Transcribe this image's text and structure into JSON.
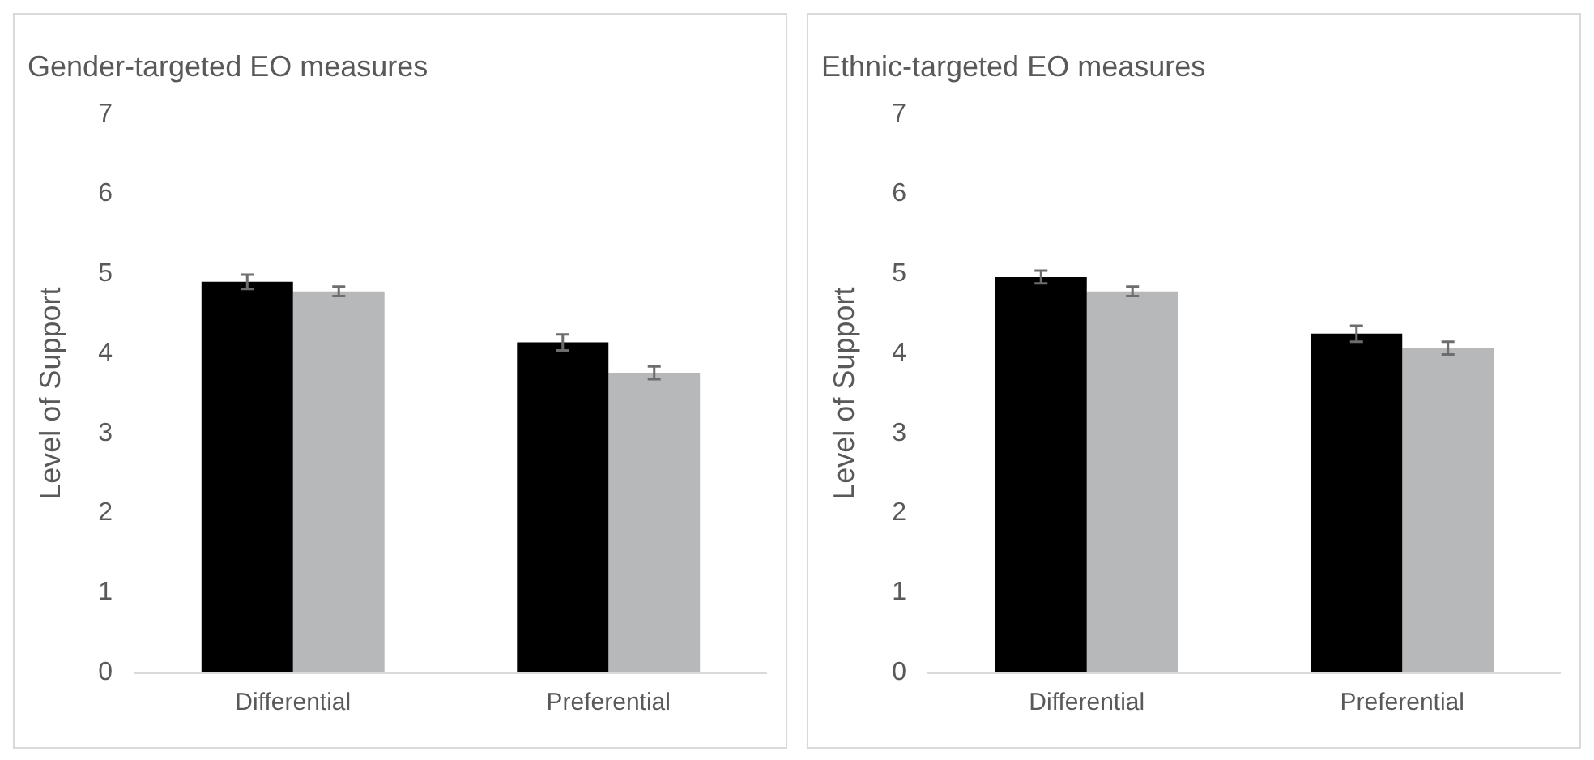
{
  "chart_data": [
    {
      "type": "bar",
      "title": "Gender-targeted EO measures",
      "ylabel": "Level of Support",
      "categories": [
        "Differential",
        "Preferential"
      ],
      "ylim": [
        0,
        7
      ],
      "yticks": [
        0,
        1,
        2,
        3,
        4,
        5,
        6,
        7
      ],
      "series": [
        {
          "color": "#000000",
          "values": [
            4.9,
            4.14
          ],
          "errors": [
            0.09,
            0.1
          ]
        },
        {
          "color": "#b7b8ba",
          "values": [
            4.78,
            3.76
          ],
          "errors": [
            0.06,
            0.08
          ]
        }
      ]
    },
    {
      "type": "bar",
      "title": "Ethnic-targeted EO measures",
      "ylabel": "Level of Support",
      "categories": [
        "Differential",
        "Preferential"
      ],
      "ylim": [
        0,
        7
      ],
      "yticks": [
        0,
        1,
        2,
        3,
        4,
        5,
        6,
        7
      ],
      "series": [
        {
          "color": "#000000",
          "values": [
            4.96,
            4.25
          ],
          "errors": [
            0.08,
            0.1
          ]
        },
        {
          "color": "#b7b8ba",
          "values": [
            4.78,
            4.07
          ],
          "errors": [
            0.06,
            0.08
          ]
        }
      ]
    }
  ]
}
